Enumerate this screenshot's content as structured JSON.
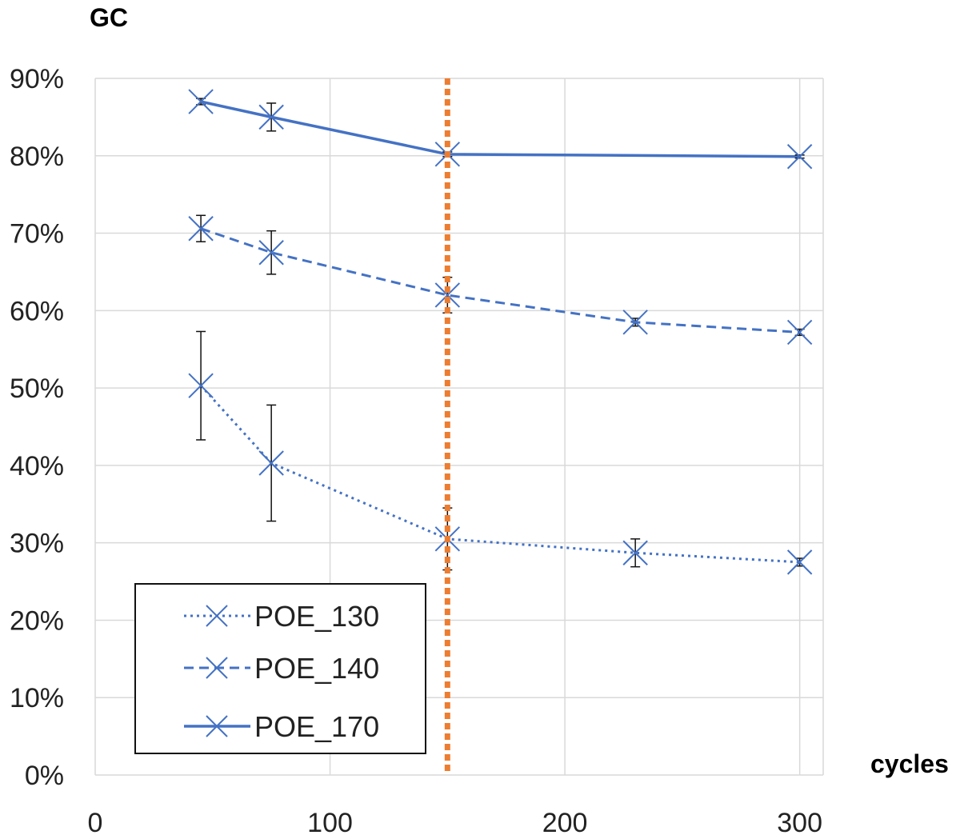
{
  "chart_data": {
    "type": "line",
    "title": "",
    "ylabel": "GC",
    "xlabel": "cycles",
    "xlim": [
      0,
      310
    ],
    "ylim": [
      0,
      0.9
    ],
    "x_ticks": [
      0,
      100,
      200,
      300
    ],
    "x_tick_labels": [
      "0",
      "100",
      "200",
      "300"
    ],
    "y_ticks": [
      0,
      0.1,
      0.2,
      0.3,
      0.4,
      0.5,
      0.6,
      0.7,
      0.8,
      0.9
    ],
    "y_tick_labels": [
      "0%",
      "10%",
      "20%",
      "30%",
      "40%",
      "50%",
      "60%",
      "70%",
      "80%",
      "90%"
    ],
    "grid": true,
    "legend_position": "bottom-left",
    "series": [
      {
        "name": "POE_130",
        "line_style": "dotted",
        "color": "#4472c4",
        "x": [
          45,
          75,
          150,
          230,
          300
        ],
        "y": [
          0.503,
          0.403,
          0.305,
          0.287,
          0.275
        ],
        "error": [
          0.07,
          0.075,
          0.04,
          0.018,
          0.005
        ]
      },
      {
        "name": "POE_140",
        "line_style": "dashed",
        "color": "#4472c4",
        "x": [
          45,
          75,
          150,
          230,
          300
        ],
        "y": [
          0.706,
          0.675,
          0.62,
          0.585,
          0.572
        ],
        "error": [
          0.017,
          0.028,
          0.023,
          0.005,
          0.004
        ]
      },
      {
        "name": "POE_170",
        "line_style": "solid",
        "color": "#4472c4",
        "x": [
          45,
          75,
          150,
          300
        ],
        "y": [
          0.87,
          0.85,
          0.802,
          0.799
        ],
        "error": [
          0.004,
          0.018,
          0.003,
          0.002
        ]
      }
    ],
    "reference_line": {
      "x": 150,
      "color": "#ed7d31",
      "style": "dotted"
    }
  }
}
